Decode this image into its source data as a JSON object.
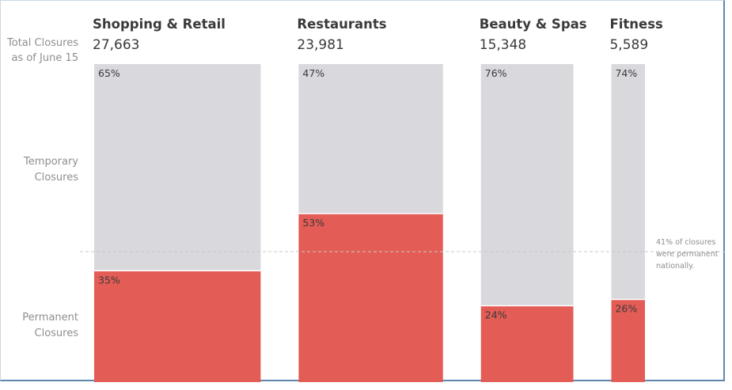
{
  "labels": {
    "total_line1": "Total Closures",
    "total_line2": "as of June 15",
    "temporary_line1": "Temporary",
    "temporary_line2": "Closures",
    "permanent_line1": "Permanent",
    "permanent_line2": "Closures"
  },
  "annotation": {
    "line1": "41% of closures",
    "line2": "were permanent",
    "line3": "nationally."
  },
  "colors": {
    "temporary": "#d9d8dd",
    "permanent": "#e35c55",
    "reference_line": "#c9c9c9"
  },
  "chart_data": {
    "type": "bar",
    "stacked": true,
    "normalized": true,
    "width_encodes": "total closures",
    "categories": [
      "Shopping & Retail",
      "Restaurants",
      "Beauty & Spas",
      "Fitness"
    ],
    "totals": [
      27663,
      23981,
      15348,
      5589
    ],
    "total_labels": [
      "27,663",
      "23,981",
      "15,348",
      "5,589"
    ],
    "series": [
      {
        "name": "Temporary Closures",
        "values": [
          65,
          47,
          76,
          74
        ],
        "labels": [
          "65%",
          "47%",
          "76%",
          "74%"
        ]
      },
      {
        "name": "Permanent Closures",
        "values": [
          35,
          53,
          24,
          26
        ],
        "labels": [
          "35%",
          "53%",
          "24%",
          "26%"
        ]
      }
    ],
    "reference_line": {
      "value": 41,
      "series": "Permanent Closures"
    },
    "ylim": [
      0,
      100
    ]
  }
}
